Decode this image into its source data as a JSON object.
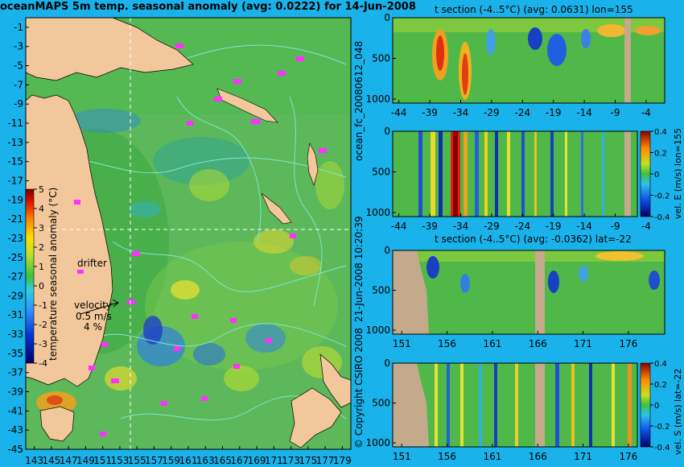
{
  "colors": {
    "background": "#1ab2ea",
    "land": "#f2c79b",
    "section_land": "#c4a98a",
    "ocean_base": "#5cb85a",
    "contour": "#7fe6d2",
    "drifter": "#ff30ff"
  },
  "header": {
    "main_title": "oceanMAPS 5m temp. seasonal anomaly (avg: 0.0222) for 14-Jun-2008"
  },
  "side_text": {
    "forecast_id": "ocean_fc_20080612_048",
    "run_time": "21-Jun-2008 10:20:39",
    "copyright": "© Copyright CSIRO 2008"
  },
  "map_labels": {
    "drifter": "drifter",
    "velocity_line1": "velocity",
    "velocity_line2": "0.5 m/s",
    "velocity_line3": "4 %"
  },
  "chart_data": [
    {
      "id": "anomaly-map",
      "type": "heatmap",
      "title": "oceanMAPS 5m temp. seasonal anomaly (avg: 0.0222) for 14-Jun-2008",
      "x_ticks": [
        "143",
        "145",
        "147",
        "149",
        "151",
        "153",
        "155",
        "157",
        "159",
        "161",
        "163",
        "165",
        "167",
        "169",
        "171",
        "173",
        "175",
        "177",
        "179"
      ],
      "y_ticks": [
        "-1",
        "-3",
        "-5",
        "-7",
        "-9",
        "-11",
        "-13",
        "-15",
        "-17",
        "-19",
        "-21",
        "-23",
        "-25",
        "-27",
        "-29",
        "-31",
        "-33",
        "-35",
        "-37",
        "-39",
        "-41",
        "-43",
        "-45"
      ],
      "xlim": [
        142,
        180
      ],
      "ylim": [
        -45,
        0
      ],
      "crosshair": {
        "lon": 155,
        "lat": -22
      },
      "colorbar": {
        "label": "temperature seasonal anomaly (°C)",
        "ticks": [
          "5",
          "4",
          "3",
          "2",
          "1",
          "0",
          "-1",
          "-2",
          "-3",
          "-4"
        ],
        "range": [
          -4,
          5
        ]
      }
    },
    {
      "id": "t-section-lon155",
      "type": "heatmap",
      "title": "t section (-4..5°C) (avg: 0.0631) lon=155",
      "x_ticks": [
        "-44",
        "-39",
        "-34",
        "-29",
        "-24",
        "-19",
        "-14",
        "-9",
        "-4"
      ],
      "y_ticks": [
        "0",
        "500",
        "1000"
      ],
      "xlim": [
        -45,
        -1
      ],
      "ylim": [
        1050,
        0
      ]
    },
    {
      "id": "vel-e-section-lon155",
      "type": "heatmap",
      "title": "",
      "x_ticks": [
        "-44",
        "-39",
        "-34",
        "-29",
        "-24",
        "-19",
        "-14",
        "-9",
        "-4"
      ],
      "y_ticks": [
        "0",
        "500",
        "1000"
      ],
      "xlim": [
        -45,
        -1
      ],
      "ylim": [
        1050,
        0
      ],
      "colorbar": {
        "label": "vel. E (m/s) lon=155",
        "ticks": [
          "0.4",
          "0.2",
          "0",
          "-0.2",
          "-0.4"
        ],
        "range": [
          -0.4,
          0.4
        ]
      }
    },
    {
      "id": "t-section-lat-22",
      "type": "heatmap",
      "title": "t section (-4..5°C) (avg: -0.0362) lat=-22",
      "x_ticks": [
        "151",
        "156",
        "161",
        "166",
        "171",
        "176"
      ],
      "y_ticks": [
        "0",
        "500",
        "1000"
      ],
      "xlim": [
        150,
        180
      ],
      "ylim": [
        1050,
        0
      ]
    },
    {
      "id": "vel-s-section-lat-22",
      "type": "heatmap",
      "title": "",
      "x_ticks": [
        "151",
        "156",
        "161",
        "166",
        "171",
        "176"
      ],
      "y_ticks": [
        "0",
        "500",
        "1000"
      ],
      "xlim": [
        150,
        180
      ],
      "ylim": [
        1050,
        0
      ],
      "colorbar": {
        "label": "vel. S (m/s) lat=-22",
        "ticks": [
          "0.4",
          "0.2",
          "0",
          "-0.2",
          "-0.4"
        ],
        "range": [
          -0.4,
          0.4
        ]
      }
    }
  ]
}
